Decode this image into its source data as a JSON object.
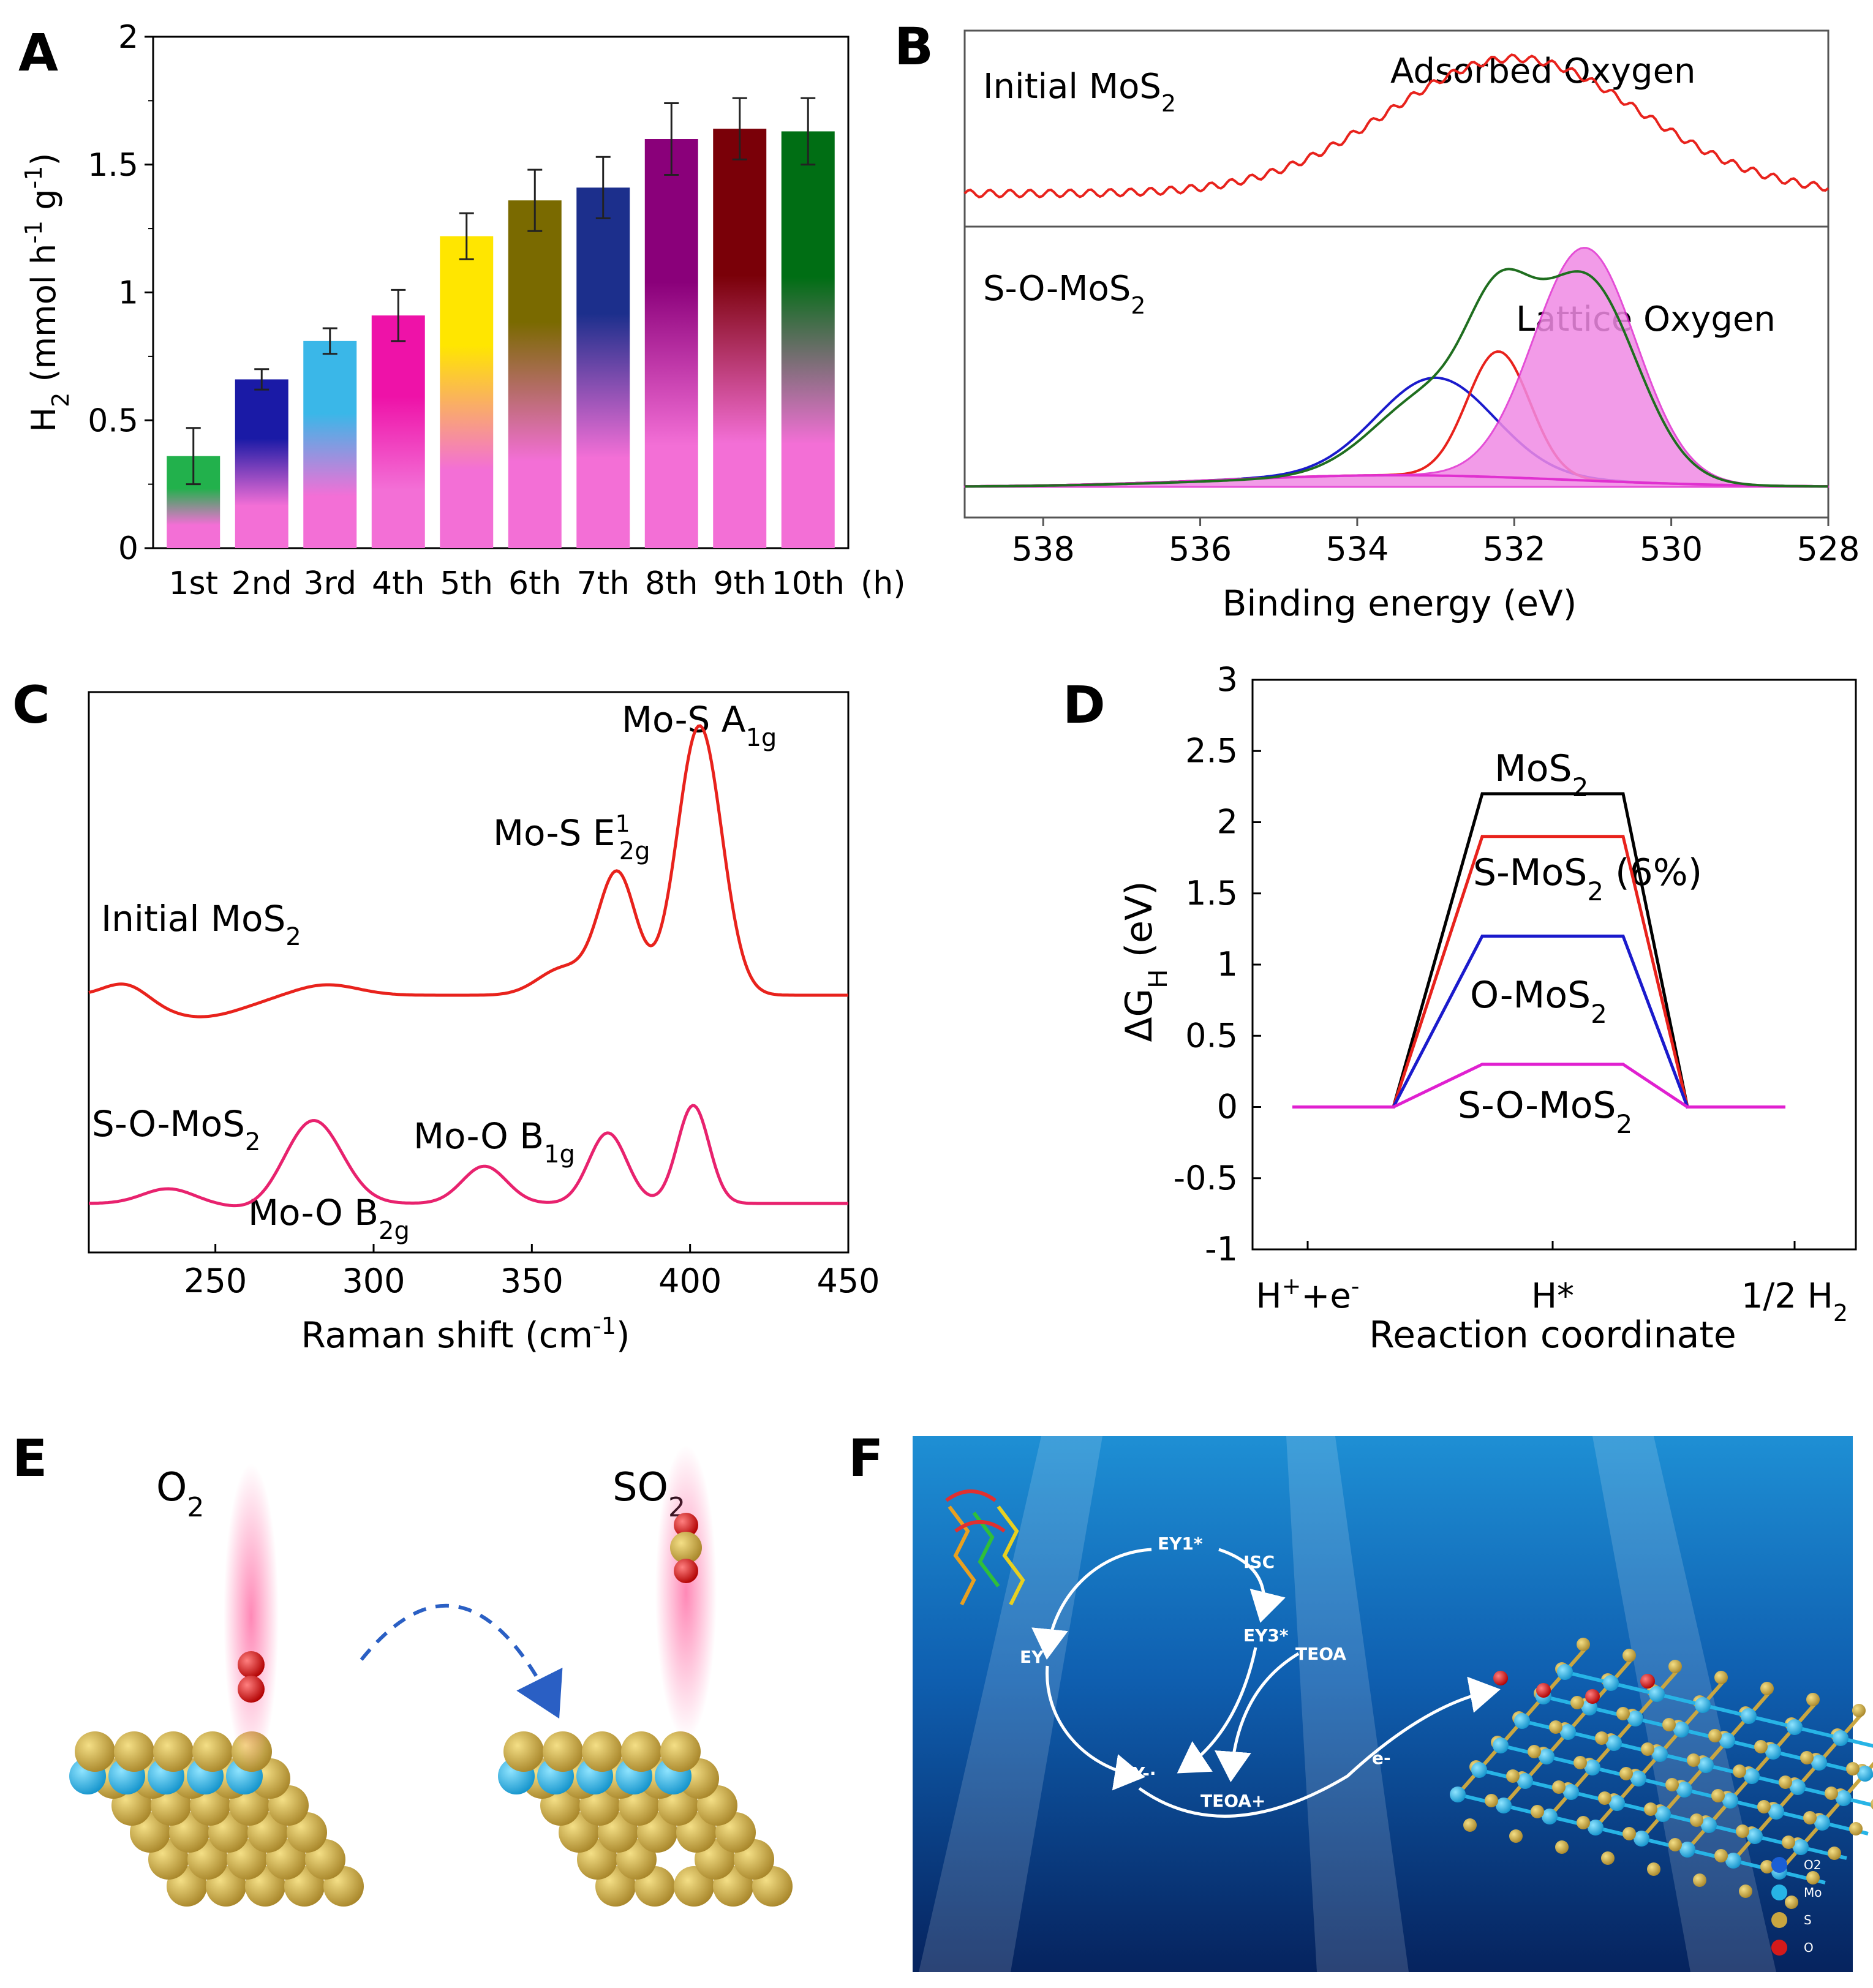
{
  "panel_letters": [
    "A",
    "B",
    "C",
    "D",
    "E",
    "F"
  ],
  "chart_data": [
    {
      "panel": "A",
      "type": "bar",
      "categories": [
        "1st",
        "2nd",
        "3rd",
        "4th",
        "5th",
        "6th",
        "7th",
        "8th",
        "9th",
        "10th"
      ],
      "x_unit": "(h)",
      "values": [
        0.36,
        0.66,
        0.81,
        0.91,
        1.22,
        1.36,
        1.41,
        1.6,
        1.64,
        1.63
      ],
      "errors": [
        0.11,
        0.04,
        0.05,
        0.1,
        0.09,
        0.12,
        0.12,
        0.14,
        0.12,
        0.13
      ],
      "bar_top_colors": [
        "#22b14c",
        "#1a1aa6",
        "#3ab7e8",
        "#ee12a8",
        "#ffe600",
        "#7a6a00",
        "#1c2f8c",
        "#8a007a",
        "#7a0008",
        "#006e14"
      ],
      "bar_bottom_color": "#f36fd6",
      "ylabel": "H2 (mmol h-1 g-1)",
      "ylim": [
        0,
        2
      ],
      "yticks": [
        "0",
        "0.5",
        "1",
        "1.5",
        "2"
      ]
    },
    {
      "panel": "B",
      "type": "line",
      "xlabel": "Binding energy (eV)",
      "xlim": [
        539,
        528
      ],
      "xticks": [
        "538",
        "536",
        "534",
        "532",
        "530",
        "528"
      ],
      "top_label": "Initial MoS2",
      "top_annotation": "Adsorbed Oxygen",
      "bottom_label": "S-O-MoS2",
      "bottom_annotation": "Lattice Oxygen",
      "series": [
        {
          "name": "Initial MoS2",
          "color": "#e8221c",
          "peak_center": 532.0,
          "peak_width": 1.6,
          "peak_height": 0.92,
          "baseline": 0.1
        },
        {
          "color": "#1f6e1f",
          "kind": "envelope"
        },
        {
          "color": "#1a1acc",
          "peak_center": 533.0,
          "peak_width": 0.75,
          "peak_height": 0.42
        },
        {
          "color": "#e8221c",
          "peak_center": 532.2,
          "peak_width": 0.4,
          "peak_height": 0.54
        },
        {
          "color": "#e030d0",
          "peak_center": 531.1,
          "peak_width": 0.65,
          "peak_height": 1.0,
          "filled": true
        }
      ]
    },
    {
      "panel": "C",
      "type": "line",
      "xlabel": "Raman shift (cm-1)",
      "xlim": [
        210,
        450
      ],
      "xticks": [
        "250",
        "300",
        "350",
        "400",
        "450"
      ],
      "series": [
        {
          "name": "Initial MoS2",
          "color": "#e8221c",
          "peaks": [
            [
              377,
              0.45,
              6
            ],
            [
              403,
              1.0,
              7
            ],
            [
              360,
              0.1,
              8
            ]
          ]
        },
        {
          "name": "S-O-MoS2",
          "color": "#e8226e",
          "peaks": [
            [
              281,
              0.85,
              9
            ],
            [
              335,
              0.38,
              7
            ],
            [
              374,
              0.72,
              6
            ],
            [
              401,
              1.0,
              5
            ]
          ]
        }
      ],
      "annotations": [
        "Mo-S A1g",
        "Mo-S E12g",
        "Mo-O B1g",
        "Mo-O B2g"
      ]
    },
    {
      "panel": "D",
      "type": "line",
      "ylabel": "ΔGH (eV)",
      "xlabel": "Reaction coordinate",
      "ylim": [
        -1,
        3
      ],
      "yticks": [
        "-1",
        "-0.5",
        "0",
        "0.5",
        "1",
        "1.5",
        "2",
        "2.5",
        "3"
      ],
      "categories": [
        "H+ + e-",
        "H*",
        "1/2 H2"
      ],
      "series": [
        {
          "name": "MoS2",
          "color": "#000000",
          "values": [
            0,
            2.2,
            0
          ]
        },
        {
          "name": "S-MoS2 (6%)",
          "color": "#e8221c",
          "values": [
            0,
            1.9,
            0
          ]
        },
        {
          "name": "O-MoS2",
          "color": "#1a1acc",
          "values": [
            0,
            1.2,
            0
          ]
        },
        {
          "name": "S-O-MoS2",
          "color": "#e020d0",
          "values": [
            0,
            0.3,
            0
          ]
        }
      ]
    }
  ],
  "panel_E": {
    "left_label": "O2",
    "right_label": "SO2"
  },
  "panel_F": {
    "cycle_labels": [
      "EY1*",
      "ISC",
      "EY3*",
      "TEOA",
      "EY",
      "EY-·",
      "TEOA+",
      "e-"
    ],
    "legend": [
      "O2",
      "Mo",
      "S",
      "O"
    ],
    "legend_colors": [
      "#1a5fd6",
      "#27b4e6",
      "#c9a640",
      "#d41a1a"
    ]
  }
}
